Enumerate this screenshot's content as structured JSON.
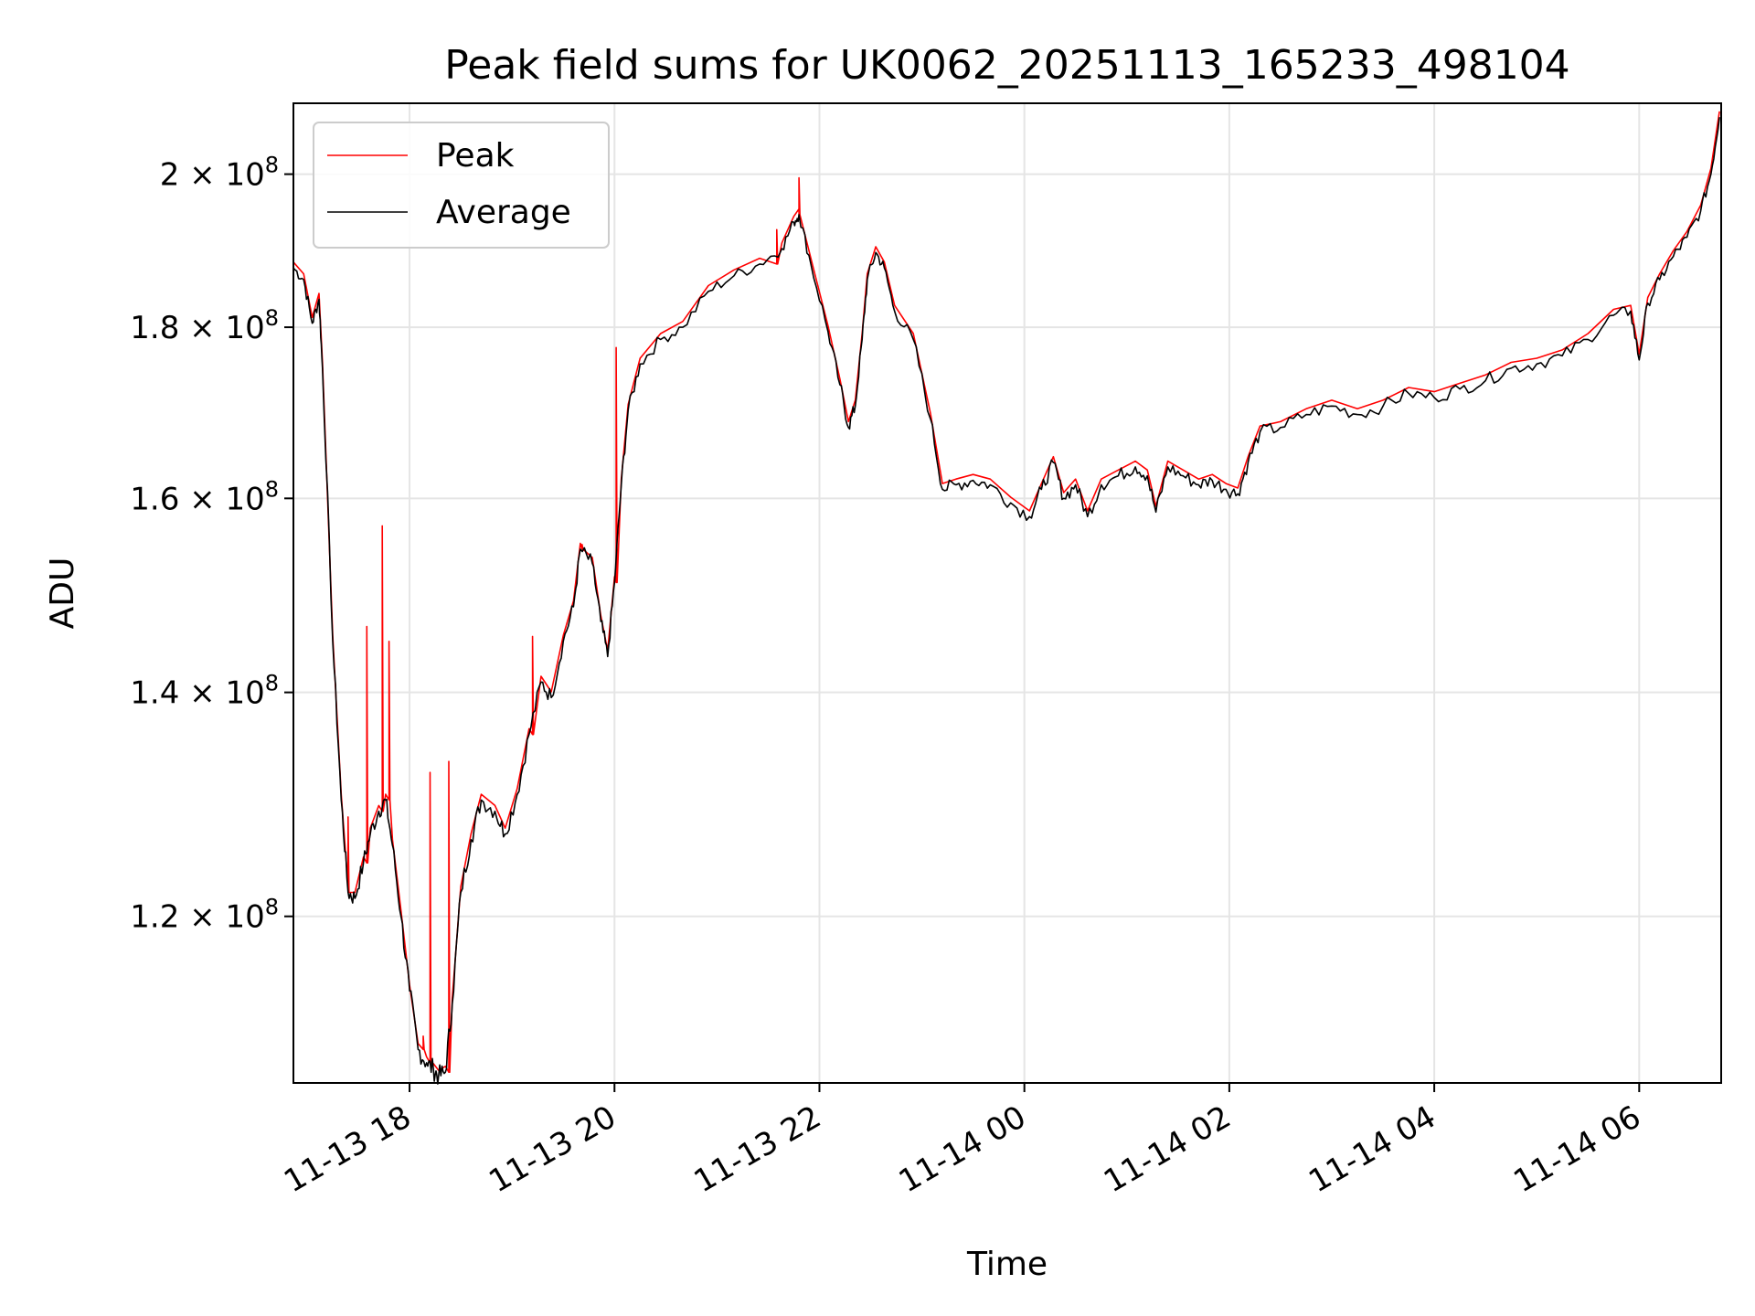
{
  "chart_data": {
    "type": "line",
    "title": "Peak field sums for UK0062_20251113_165233_498104",
    "xlabel": "Time",
    "ylabel": "ADU",
    "yscale": "log",
    "grid": true,
    "legend_position": "upper-left",
    "xlim": [
      "2025-11-13 16:52",
      "2025-11-14 06:48"
    ],
    "ylim": [
      107000000,
      210000000
    ],
    "x_ticks": [
      {
        "t": "2025-11-13 18:00",
        "label": "11-13 18"
      },
      {
        "t": "2025-11-13 20:00",
        "label": "11-13 20"
      },
      {
        "t": "2025-11-13 22:00",
        "label": "11-13 22"
      },
      {
        "t": "2025-11-14 00:00",
        "label": "11-14 00"
      },
      {
        "t": "2025-11-14 02:00",
        "label": "11-14 02"
      },
      {
        "t": "2025-11-14 04:00",
        "label": "11-14 04"
      },
      {
        "t": "2025-11-14 06:00",
        "label": "11-14 06"
      }
    ],
    "y_ticks": [
      {
        "v": 120000000,
        "mant": "1.2",
        "exp": "8"
      },
      {
        "v": 140000000,
        "mant": "1.4",
        "exp": "8"
      },
      {
        "v": 160000000,
        "mant": "1.6",
        "exp": "8"
      },
      {
        "v": 180000000,
        "mant": "1.8",
        "exp": "8"
      },
      {
        "v": 200000000,
        "mant": "2",
        "exp": "8"
      }
    ],
    "series": [
      {
        "name": "Average",
        "color": "#000000",
        "points": [
          [
            "2025-11-13 16:52",
            187.5
          ],
          [
            "2025-11-13 16:58",
            186.0
          ],
          [
            "2025-11-13 17:03",
            180.5
          ],
          [
            "2025-11-13 17:07",
            183.5
          ],
          [
            "2025-11-13 17:09",
            175.0
          ],
          [
            "2025-11-13 17:15",
            145.0
          ],
          [
            "2025-11-13 17:20",
            130.0
          ],
          [
            "2025-11-13 17:24",
            122.0
          ],
          [
            "2025-11-13 17:28",
            121.5
          ],
          [
            "2025-11-13 17:33",
            124.5
          ],
          [
            "2025-11-13 17:37",
            127.0
          ],
          [
            "2025-11-13 17:42",
            129.0
          ],
          [
            "2025-11-13 17:46",
            130.0
          ],
          [
            "2025-11-13 17:50",
            126.0
          ],
          [
            "2025-11-13 17:55",
            120.0
          ],
          [
            "2025-11-13 18:00",
            114.0
          ],
          [
            "2025-11-13 18:05",
            109.5
          ],
          [
            "2025-11-13 18:10",
            108.5
          ],
          [
            "2025-11-13 18:14",
            108.0
          ],
          [
            "2025-11-13 18:17",
            107.5
          ],
          [
            "2025-11-13 18:21",
            107.8
          ],
          [
            "2025-11-13 18:25",
            113.0
          ],
          [
            "2025-11-13 18:30",
            122.0
          ],
          [
            "2025-11-13 18:36",
            126.5
          ],
          [
            "2025-11-13 18:42",
            130.0
          ],
          [
            "2025-11-13 18:50",
            129.0
          ],
          [
            "2025-11-13 18:56",
            127.0
          ],
          [
            "2025-11-13 19:03",
            130.5
          ],
          [
            "2025-11-13 19:10",
            136.0
          ],
          [
            "2025-11-13 19:17",
            141.0
          ],
          [
            "2025-11-13 19:23",
            139.5
          ],
          [
            "2025-11-13 19:30",
            145.0
          ],
          [
            "2025-11-13 19:36",
            148.5
          ],
          [
            "2025-11-13 19:40",
            154.5
          ],
          [
            "2025-11-13 19:47",
            153.0
          ],
          [
            "2025-11-13 19:52",
            147.0
          ],
          [
            "2025-11-13 19:56",
            143.5
          ],
          [
            "2025-11-13 20:00",
            151.0
          ],
          [
            "2025-11-13 20:04",
            161.5
          ],
          [
            "2025-11-13 20:08",
            170.0
          ],
          [
            "2025-11-13 20:15",
            175.5
          ],
          [
            "2025-11-13 20:27",
            178.5
          ],
          [
            "2025-11-13 20:40",
            180.0
          ],
          [
            "2025-11-13 20:55",
            184.5
          ],
          [
            "2025-11-13 21:10",
            186.5
          ],
          [
            "2025-11-13 21:25",
            188.0
          ],
          [
            "2025-11-13 21:38",
            190.0
          ],
          [
            "2025-11-13 21:45",
            193.5
          ],
          [
            "2025-11-13 21:48",
            194.5
          ],
          [
            "2025-11-13 21:55",
            188.0
          ],
          [
            "2025-11-13 22:05",
            179.5
          ],
          [
            "2025-11-13 22:12",
            173.0
          ],
          [
            "2025-11-13 22:17",
            168.0
          ],
          [
            "2025-11-13 22:21",
            170.5
          ],
          [
            "2025-11-13 22:25",
            178.5
          ],
          [
            "2025-11-13 22:28",
            186.0
          ],
          [
            "2025-11-13 22:33",
            189.5
          ],
          [
            "2025-11-13 22:38",
            187.5
          ],
          [
            "2025-11-13 22:44",
            182.0
          ],
          [
            "2025-11-13 22:55",
            178.5
          ],
          [
            "2025-11-13 23:05",
            169.0
          ],
          [
            "2025-11-13 23:12",
            161.0
          ],
          [
            "2025-11-13 23:20",
            161.5
          ],
          [
            "2025-11-13 23:30",
            162.0
          ],
          [
            "2025-11-13 23:40",
            161.5
          ],
          [
            "2025-11-13 23:52",
            159.5
          ],
          [
            "2025-11-14 00:03",
            158.0
          ],
          [
            "2025-11-14 00:10",
            161.0
          ],
          [
            "2025-11-14 00:17",
            164.0
          ],
          [
            "2025-11-14 00:23",
            160.0
          ],
          [
            "2025-11-14 00:30",
            161.5
          ],
          [
            "2025-11-14 00:37",
            158.0
          ],
          [
            "2025-11-14 00:45",
            161.5
          ],
          [
            "2025-11-14 00:55",
            162.5
          ],
          [
            "2025-11-14 01:05",
            163.5
          ],
          [
            "2025-11-14 01:12",
            162.5
          ],
          [
            "2025-11-14 01:17",
            158.5
          ],
          [
            "2025-11-14 01:24",
            163.5
          ],
          [
            "2025-11-14 01:33",
            162.5
          ],
          [
            "2025-11-14 01:42",
            161.5
          ],
          [
            "2025-11-14 01:50",
            162.0
          ],
          [
            "2025-11-14 01:58",
            161.0
          ],
          [
            "2025-11-14 02:05",
            160.5
          ],
          [
            "2025-11-14 02:11",
            164.0
          ],
          [
            "2025-11-14 02:18",
            167.5
          ],
          [
            "2025-11-14 02:30",
            168.0
          ],
          [
            "2025-11-14 02:45",
            169.5
          ],
          [
            "2025-11-14 03:00",
            170.5
          ],
          [
            "2025-11-14 03:15",
            169.5
          ],
          [
            "2025-11-14 03:30",
            170.5
          ],
          [
            "2025-11-14 03:45",
            172.0
          ],
          [
            "2025-11-14 04:00",
            171.5
          ],
          [
            "2025-11-14 04:15",
            172.5
          ],
          [
            "2025-11-14 04:30",
            173.5
          ],
          [
            "2025-11-14 04:45",
            175.0
          ],
          [
            "2025-11-14 05:00",
            175.5
          ],
          [
            "2025-11-14 05:15",
            176.5
          ],
          [
            "2025-11-14 05:30",
            178.5
          ],
          [
            "2025-11-14 05:45",
            181.5
          ],
          [
            "2025-11-14 05:55",
            182.0
          ],
          [
            "2025-11-14 06:00",
            176.0
          ],
          [
            "2025-11-14 06:05",
            183.0
          ],
          [
            "2025-11-14 06:12",
            186.0
          ],
          [
            "2025-11-14 06:20",
            189.0
          ],
          [
            "2025-11-14 06:28",
            191.5
          ],
          [
            "2025-11-14 06:36",
            195.0
          ],
          [
            "2025-11-14 06:42",
            200.0
          ],
          [
            "2025-11-14 06:47",
            208.0
          ]
        ]
      },
      {
        "name": "Peak",
        "color": "#ff0000",
        "spikes": [
          [
            "2025-11-13 17:24",
            128.5
          ],
          [
            "2025-11-13 17:35",
            146.5
          ],
          [
            "2025-11-13 17:44",
            157.0
          ],
          [
            "2025-11-13 17:48",
            145.0
          ],
          [
            "2025-11-13 18:08",
            110.5
          ],
          [
            "2025-11-13 18:12",
            132.5
          ],
          [
            "2025-11-13 18:23",
            133.5
          ],
          [
            "2025-11-13 19:12",
            145.5
          ],
          [
            "2025-11-13 19:41",
            155.0
          ],
          [
            "2025-11-13 20:01",
            177.5
          ],
          [
            "2025-11-13 21:35",
            192.5
          ],
          [
            "2025-11-13 21:48",
            199.5
          ]
        ]
      }
    ]
  }
}
